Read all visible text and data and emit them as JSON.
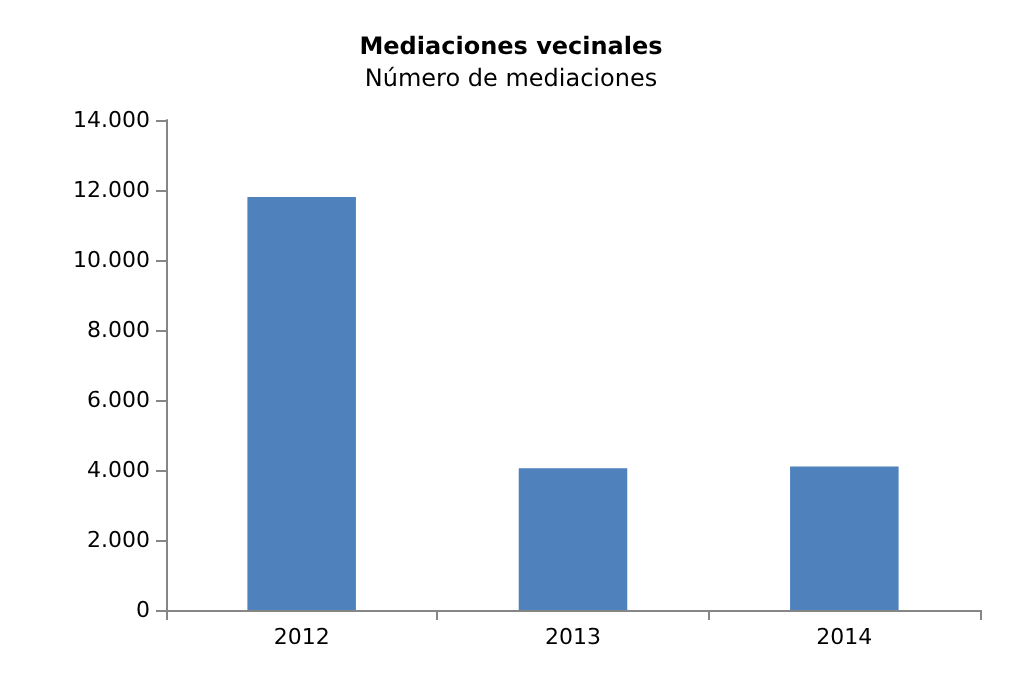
{
  "chart_data": {
    "type": "bar",
    "title": "Mediaciones vecinales",
    "subtitle": "Número de mediaciones",
    "categories": [
      "2012",
      "2013",
      "2014"
    ],
    "values": [
      11800,
      4050,
      4100
    ],
    "color": "#4f81bd",
    "ylim": [
      0,
      14000
    ],
    "yticks": [
      {
        "value": 0,
        "label": "0"
      },
      {
        "value": 2000,
        "label": "2.000"
      },
      {
        "value": 4000,
        "label": "4.000"
      },
      {
        "value": 6000,
        "label": "6.000"
      },
      {
        "value": 8000,
        "label": "8.000"
      },
      {
        "value": 10000,
        "label": "10.000"
      },
      {
        "value": 12000,
        "label": "12.000"
      },
      {
        "value": 14000,
        "label": "14.000"
      }
    ],
    "grid": false
  }
}
